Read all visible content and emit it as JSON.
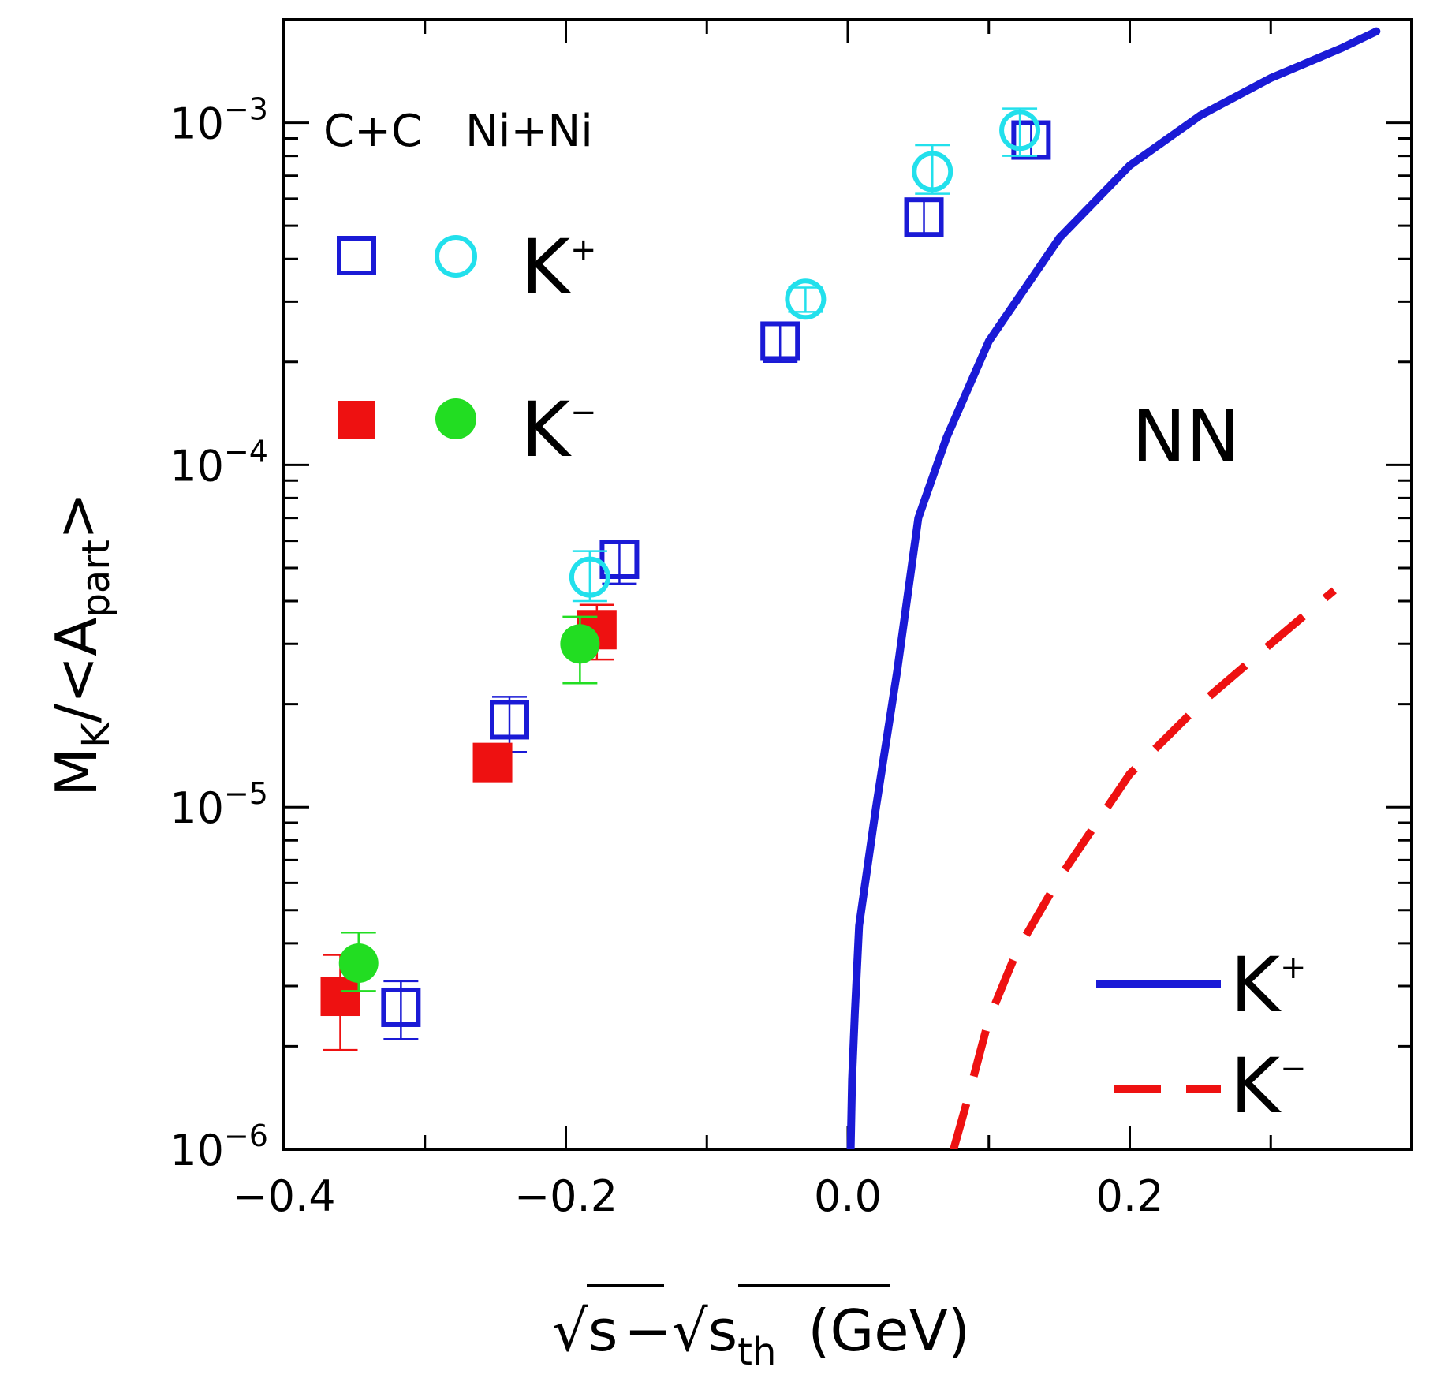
{
  "colors": {
    "kplus_square": "#1a1ad6",
    "kplus_circle": "#22e0ec",
    "kminus_square": "#ee1111",
    "kminus_circle": "#22dd22",
    "curve_kplus": "#1a1ad6",
    "curve_kminus": "#ee1111"
  },
  "chart_data": {
    "type": "scatter",
    "yscale": "log",
    "xlim": [
      -0.4,
      0.4
    ],
    "ylim": [
      1e-06,
      0.002
    ],
    "x_ticks": [
      {
        "value": -0.4,
        "label": "−0.4"
      },
      {
        "value": -0.2,
        "label": "−0.2"
      },
      {
        "value": 0.0,
        "label": "0.0"
      },
      {
        "value": 0.2,
        "label": "0.2"
      }
    ],
    "y_ticks": [
      {
        "value": 1e-06,
        "base": "10",
        "exp": "−6"
      },
      {
        "value": 1e-05,
        "base": "10",
        "exp": "−5"
      },
      {
        "value": 0.0001,
        "base": "10",
        "exp": "−4"
      },
      {
        "value": 0.001,
        "base": "10",
        "exp": "−3"
      }
    ],
    "xlabel": {
      "root": "√",
      "s1": "s",
      "minus": "−√",
      "s2": "s",
      "sub": "th",
      "unit": "(GeV)"
    },
    "ylabel": {
      "main": "M",
      "sub_k": "K",
      "mid": "/<A",
      "sub_part": "part",
      "end": ">"
    },
    "systems_label": {
      "cc": "C+C",
      "nini": "Ni+Ni"
    },
    "legend_markers": {
      "kplus": "K",
      "kplus_sup": "+",
      "kminus": "K",
      "kminus_sup": "−"
    },
    "nn_label": "NN",
    "curve_legend": {
      "kplus": "K",
      "kplus_sup": "+",
      "kminus": "K",
      "kminus_sup": "−"
    },
    "series": [
      {
        "name": "K+ C+C",
        "marker": "open-square",
        "color_key": "kplus_square",
        "points": [
          {
            "x": -0.317,
            "y": 2.6e-06,
            "err": [
              2.1e-06,
              3.1e-06
            ]
          },
          {
            "x": -0.24,
            "y": 1.8e-05,
            "err": [
              1.45e-05,
              2.1e-05
            ]
          },
          {
            "x": -0.162,
            "y": 5.3e-05,
            "err": [
              4.5e-05,
              5.9e-05
            ]
          },
          {
            "x": -0.048,
            "y": 0.00023,
            "err": [
              0.0002,
              0.00026
            ]
          },
          {
            "x": 0.054,
            "y": 0.00053,
            "err": [
              0.00047,
              0.0006
            ]
          },
          {
            "x": 0.13,
            "y": 0.00089,
            "err": [
              0.00079,
              0.001
            ]
          }
        ]
      },
      {
        "name": "K+ Ni+Ni",
        "marker": "open-circle",
        "color_key": "kplus_circle",
        "points": [
          {
            "x": -0.183,
            "y": 4.7e-05,
            "err": [
              4e-05,
              5.6e-05
            ]
          },
          {
            "x": -0.03,
            "y": 0.000305,
            "err": [
              0.00028,
              0.00033
            ]
          },
          {
            "x": 0.06,
            "y": 0.00072,
            "err": [
              0.00062,
              0.00086
            ]
          },
          {
            "x": 0.122,
            "y": 0.00095,
            "err": [
              0.0008,
              0.0011
            ]
          }
        ]
      },
      {
        "name": "K− C+C",
        "marker": "filled-square",
        "color_key": "kminus_square",
        "points": [
          {
            "x": -0.36,
            "y": 2.8e-06,
            "err": [
              1.95e-06,
              3.7e-06
            ]
          },
          {
            "x": -0.252,
            "y": 1.35e-05,
            "err": [
              1.3e-05,
              1.4e-05
            ]
          },
          {
            "x": -0.178,
            "y": 3.3e-05,
            "err": [
              2.7e-05,
              3.9e-05
            ]
          }
        ]
      },
      {
        "name": "K− Ni+Ni",
        "marker": "filled-circle",
        "color_key": "kminus_circle",
        "points": [
          {
            "x": -0.347,
            "y": 3.5e-06,
            "err": [
              2.9e-06,
              4.3e-06
            ]
          },
          {
            "x": -0.19,
            "y": 3e-05,
            "err": [
              2.3e-05,
              3.6e-05
            ]
          }
        ]
      },
      {
        "name": "NN K+",
        "type": "line",
        "style": "solid",
        "color_key": "curve_kplus",
        "points": [
          [
            0.002,
            1e-06
          ],
          [
            0.003,
            1.6e-06
          ],
          [
            0.005,
            2.5e-06
          ],
          [
            0.008,
            4.5e-06
          ],
          [
            0.02,
            1e-05
          ],
          [
            0.035,
            2.5e-05
          ],
          [
            0.05,
            7e-05
          ],
          [
            0.07,
            0.00012
          ],
          [
            0.1,
            0.00023
          ],
          [
            0.15,
            0.00046
          ],
          [
            0.2,
            0.00075
          ],
          [
            0.25,
            0.00105
          ],
          [
            0.3,
            0.00135
          ],
          [
            0.35,
            0.00165
          ],
          [
            0.375,
            0.00185
          ]
        ]
      },
      {
        "name": "NN K−",
        "type": "line",
        "style": "dashed",
        "color_key": "curve_kminus",
        "points": [
          [
            0.075,
            1e-06
          ],
          [
            0.085,
            1.4e-06
          ],
          [
            0.1,
            2.4e-06
          ],
          [
            0.12,
            3.8e-06
          ],
          [
            0.15,
            6.2e-06
          ],
          [
            0.2,
            1.25e-05
          ],
          [
            0.25,
            2e-05
          ],
          [
            0.3,
            3e-05
          ],
          [
            0.345,
            4.3e-05
          ]
        ]
      }
    ]
  }
}
